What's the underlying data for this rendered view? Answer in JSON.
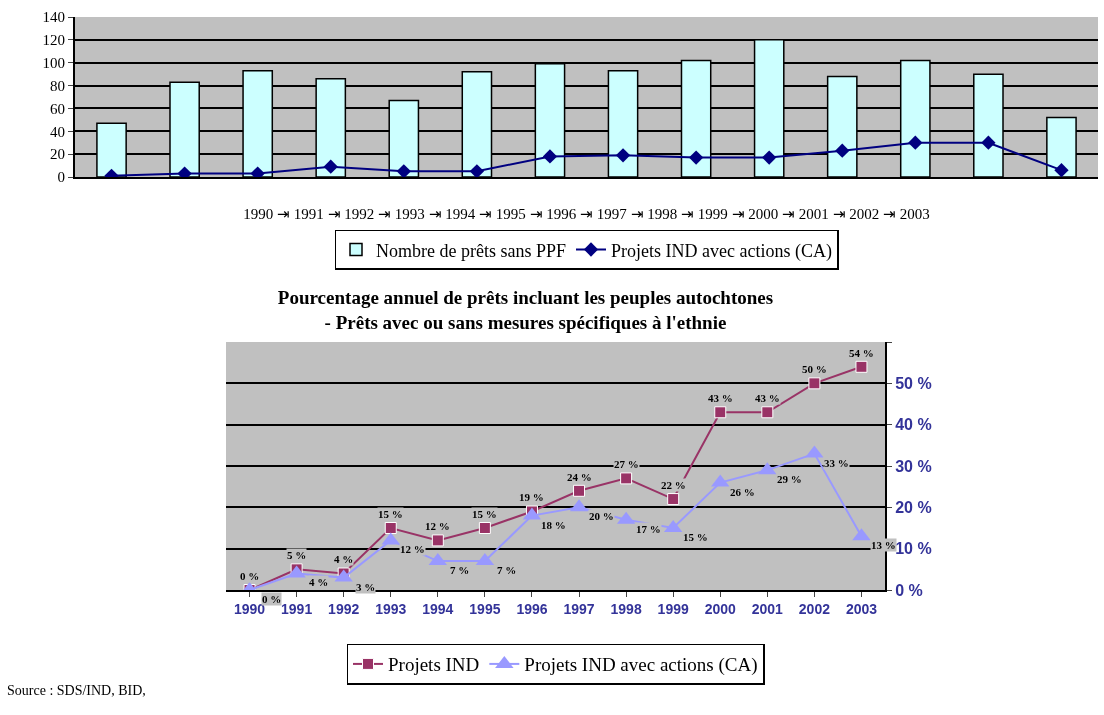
{
  "chart_data": [
    {
      "type": "bar",
      "xlabel": "1990 ⇥ 1991 ⇥ 1992 ⇥ 1993 ⇥ 1994 ⇥ 1995 ⇥ 1996 ⇥ 1997 ⇥ 1998 ⇥ 1999 ⇥ 2000 ⇥ 2001 ⇥ 2002 ⇥ 2003",
      "categories": [
        null,
        null,
        null,
        null,
        null,
        null,
        null,
        null,
        null,
        null,
        null,
        null,
        null,
        null
      ],
      "series": [
        {
          "name": "Nombre de prêts sans PPF",
          "color": "#ccffff",
          "values": [
            47,
            83,
            93,
            86,
            67,
            92,
            99,
            93,
            102,
            120,
            88,
            102,
            90,
            52
          ]
        },
        {
          "type": "line",
          "name": "Projets IND avec actions (CA)",
          "color": "#000080",
          "marker": "diamond",
          "values": [
            1,
            3,
            3,
            9,
            5,
            5,
            18,
            19,
            17,
            17,
            23,
            30,
            30,
            6
          ]
        }
      ],
      "ylim": [
        0,
        140
      ],
      "yticks": [
        0,
        20,
        40,
        60,
        80,
        100,
        120,
        140
      ],
      "grid": "y",
      "legend": "bottom"
    },
    {
      "type": "line",
      "title": "Pourcentage annuel de prêts incluant les peuples autochtones\n- Prêts avec ou sans mesures spécifiques à l'ethnie",
      "categories": [
        "1990",
        "1991",
        "1992",
        "1993",
        "1994",
        "1995",
        "1996",
        "1997",
        "1998",
        "1999",
        "2000",
        "2001",
        "2002",
        "2003"
      ],
      "series": [
        {
          "name": "Projets IND",
          "color": "#993366",
          "marker": "square",
          "values": [
            0,
            5,
            4,
            15,
            12,
            15,
            19,
            24,
            27,
            22,
            43,
            43,
            50,
            54
          ],
          "value_labels": [
            "0 %",
            "5 %",
            "4 %",
            "15 %",
            "12 %",
            "15 %",
            "19 %",
            "24 %",
            "27 %",
            "22 %",
            "43 %",
            "43 %",
            "50 %",
            "54 %"
          ]
        },
        {
          "name": "Projets IND avec actions (CA)",
          "color": "#9999ff",
          "marker": "triangle",
          "values": [
            0,
            4,
            3,
            12,
            7,
            7,
            18,
            20,
            17,
            15,
            26,
            29,
            33,
            13
          ],
          "value_labels": [
            "0 %",
            "4 %",
            "3 %",
            "12 %",
            "7 %",
            "7 %",
            "18 %",
            "20 %",
            "17 %",
            "15 %",
            "26 %",
            "29 %",
            "33 %",
            "13 %"
          ]
        }
      ],
      "ylim": [
        0,
        60
      ],
      "yticks": [
        {
          "value": 0,
          "label": "0 %"
        },
        {
          "value": 10,
          "label": "10 %"
        },
        {
          "value": 20,
          "label": "20 %"
        },
        {
          "value": 30,
          "label": "30 %"
        },
        {
          "value": 40,
          "label": "40 %"
        },
        {
          "value": 50,
          "label": "50 %"
        },
        {
          "value": 60,
          "label": null
        }
      ],
      "grid": "y",
      "legend": "bottom",
      "annotations": [
        "Source : SDS/IND, BID,"
      ]
    }
  ]
}
